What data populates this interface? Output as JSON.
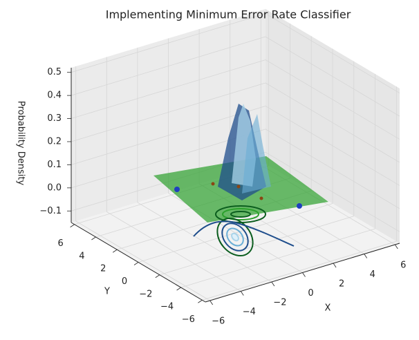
{
  "chart_data": {
    "type": "surface3d",
    "title": "Implementing Minimum Error Rate Classifier",
    "xlabel": "X",
    "ylabel": "Y",
    "zlabel": "Probability Density",
    "xlim": [
      -6.3,
      6.3
    ],
    "ylim": [
      -6.3,
      6.3
    ],
    "zlim": [
      -0.15,
      0.52
    ],
    "xticks": [
      {
        "value": -6,
        "label": "−6"
      },
      {
        "value": -4,
        "label": "−4"
      },
      {
        "value": -2,
        "label": "−2"
      },
      0,
      2,
      4,
      6
    ],
    "yticks": [
      {
        "value": -6,
        "label": "−6"
      },
      {
        "value": -4,
        "label": "−4"
      },
      {
        "value": -2,
        "label": "−2"
      },
      0,
      2,
      4,
      6
    ],
    "zticks": [
      {
        "value": -0.1,
        "label": "−0.1"
      },
      {
        "value": 0,
        "label": "0.0"
      },
      0.1,
      0.2,
      0.3,
      0.4,
      0.5
    ],
    "grid": true
  }
}
